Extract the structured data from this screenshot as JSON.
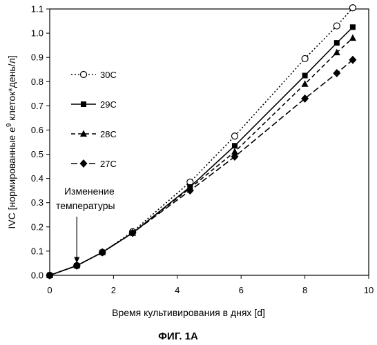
{
  "chart_data": {
    "type": "line",
    "xlabel": "Время культивирования в днях [d]",
    "ylabel": "IVC [нормированные e^9 клеток*день/л]",
    "ylabel_main": "IVC [нормированные e",
    "ylabel_sup": "9",
    "ylabel_rest": " клеток*день/л]",
    "xlim": [
      0,
      10
    ],
    "ylim": [
      0.0,
      1.1
    ],
    "x_ticks": [
      "0",
      "2",
      "4",
      "6",
      "8",
      "10"
    ],
    "y_ticks": [
      "0.0",
      "0.1",
      "0.2",
      "0.3",
      "0.4",
      "0.5",
      "0.6",
      "0.7",
      "0.8",
      "0.9",
      "1.0",
      "1.1"
    ],
    "grid": false,
    "legend_position": "left",
    "annotation": {
      "lines": [
        "Изменение",
        "температуры"
      ],
      "x": 0.85,
      "y": 0.05
    },
    "series": [
      {
        "name": "30C",
        "marker": "open-circle",
        "line_style": "dotted",
        "x": [
          0,
          0.85,
          1.65,
          2.6,
          4.4,
          5.8,
          8.0,
          9.0,
          9.5
        ],
        "y": [
          0.0,
          0.04,
          0.095,
          0.18,
          0.385,
          0.575,
          0.895,
          1.03,
          1.105
        ]
      },
      {
        "name": "29C",
        "marker": "square",
        "line_style": "solid",
        "x": [
          0,
          0.85,
          1.65,
          2.6,
          4.4,
          5.8,
          8.0,
          9.0,
          9.5
        ],
        "y": [
          0.0,
          0.04,
          0.095,
          0.175,
          0.365,
          0.535,
          0.825,
          0.96,
          1.025
        ]
      },
      {
        "name": "28C",
        "marker": "triangle",
        "line_style": "dashed",
        "x": [
          0,
          0.85,
          1.65,
          2.6,
          4.4,
          5.8,
          8.0,
          9.0,
          9.5
        ],
        "y": [
          0.0,
          0.04,
          0.095,
          0.175,
          0.36,
          0.51,
          0.79,
          0.92,
          0.98
        ]
      },
      {
        "name": "27C",
        "marker": "diamond",
        "line_style": "long-dashed",
        "x": [
          0,
          0.85,
          1.65,
          2.6,
          4.4,
          5.8,
          8.0,
          9.0,
          9.5
        ],
        "y": [
          0.0,
          0.04,
          0.095,
          0.175,
          0.35,
          0.49,
          0.73,
          0.835,
          0.89
        ]
      }
    ]
  },
  "caption": "ФИГ. 1А",
  "colors": {
    "ink": "#000000",
    "background": "#ffffff"
  }
}
